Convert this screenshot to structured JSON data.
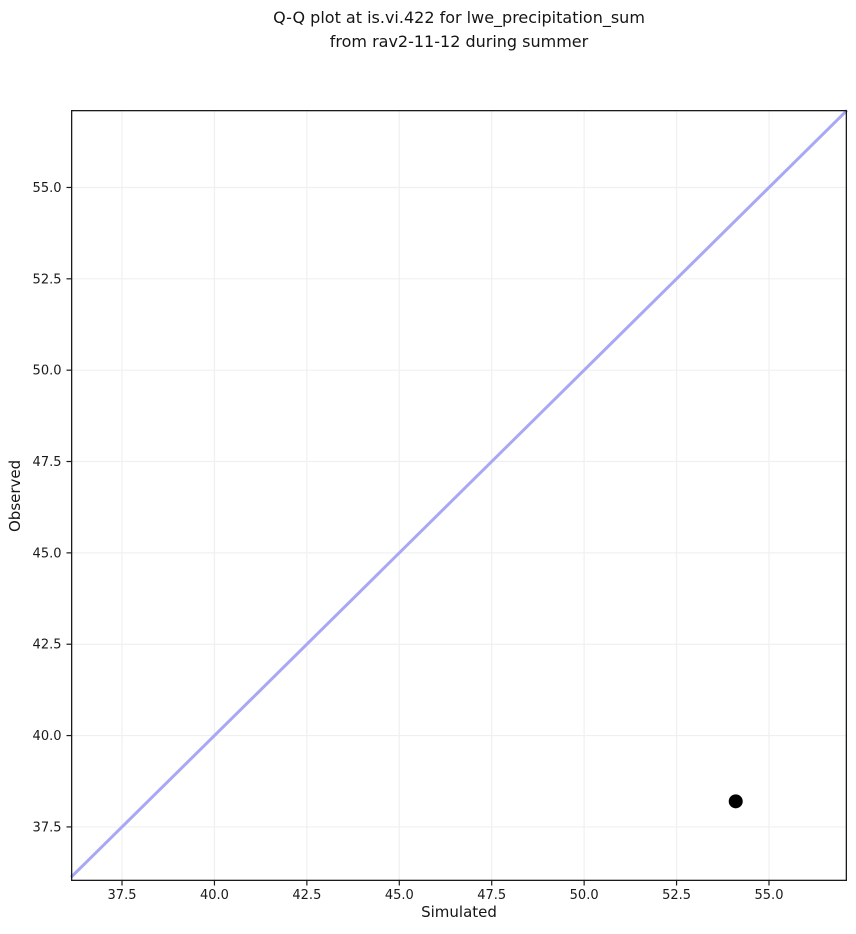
{
  "title": {
    "line1": "Q-Q plot at is.vi.422 for lwe_precipitation_sum",
    "line2": "from rav2-11-12 during summer"
  },
  "chart_data": {
    "type": "scatter",
    "title": "Q-Q plot at is.vi.422 for lwe_precipitation_sum\nfrom rav2-11-12 during summer",
    "xlabel": "Simulated",
    "ylabel": "Observed",
    "xlim": [
      36.12,
      57.11
    ],
    "ylim": [
      36.02,
      57.12
    ],
    "x_ticks": [
      37.5,
      40.0,
      42.5,
      45.0,
      47.5,
      50.0,
      52.5,
      55.0
    ],
    "x_tick_labels": [
      "37.5",
      "40.0",
      "42.5",
      "45.0",
      "47.5",
      "50.0",
      "52.5",
      "55.0"
    ],
    "y_ticks": [
      37.5,
      40.0,
      42.5,
      45.0,
      47.5,
      50.0,
      52.5,
      55.0
    ],
    "y_tick_labels": [
      "37.5",
      "40.0",
      "42.5",
      "45.0",
      "47.5",
      "50.0",
      "52.5",
      "55.0"
    ],
    "grid": true,
    "legend": "none",
    "points": [
      {
        "x": 54.1,
        "y": 38.2
      }
    ],
    "identity_line": {
      "from": 36.12,
      "to": 57.11,
      "color": "#a8a8f4",
      "width": 3
    },
    "point_color": "#000000",
    "point_radius": 7,
    "grid_color": "#f0f0f0",
    "axis_color": "#1a1a1a",
    "text_color": "#1a1a1a"
  }
}
